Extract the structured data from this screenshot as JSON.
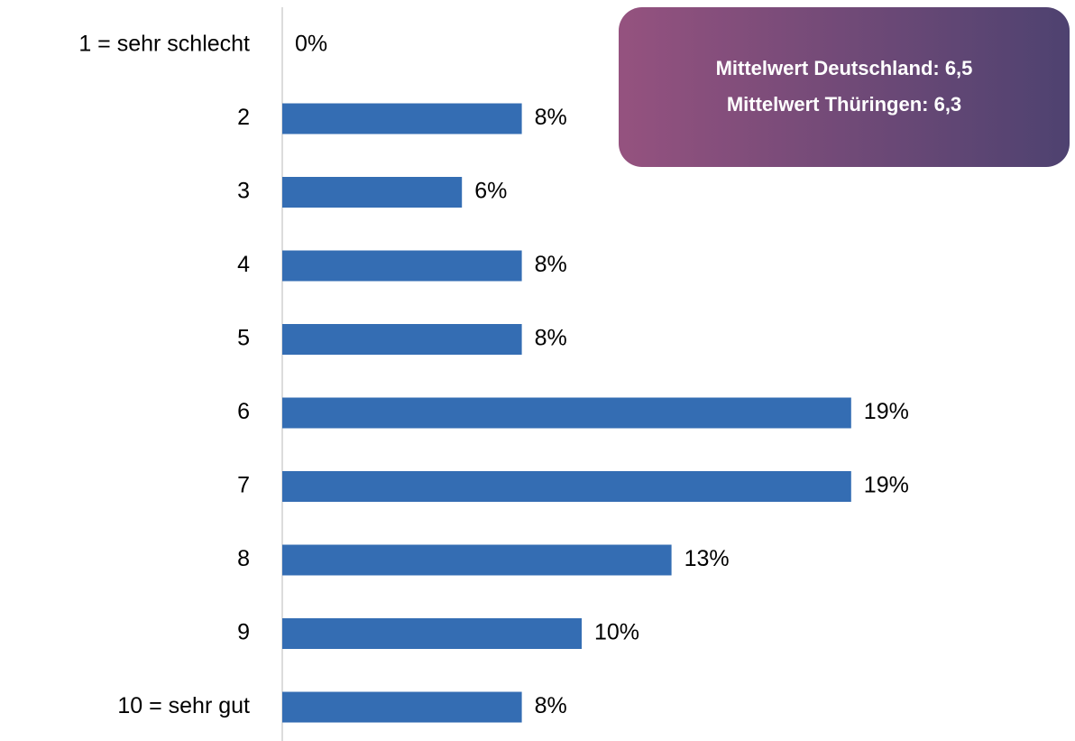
{
  "chart_data": {
    "type": "bar",
    "orientation": "horizontal",
    "categories": [
      "1 = sehr schlecht",
      "2",
      "3",
      "4",
      "5",
      "6",
      "7",
      "8",
      "9",
      "10 = sehr gut"
    ],
    "values": [
      0,
      8,
      6,
      8,
      8,
      19,
      19,
      13,
      10,
      8
    ],
    "value_labels": [
      "0%",
      "8%",
      "6%",
      "8%",
      "8%",
      "19%",
      "19%",
      "13%",
      "10%",
      "8%"
    ],
    "color": "#346db3",
    "annotations": [
      "Mittelwert Deutschland: 6,5",
      "Mittelwert Thüringen: 6,3"
    ]
  }
}
